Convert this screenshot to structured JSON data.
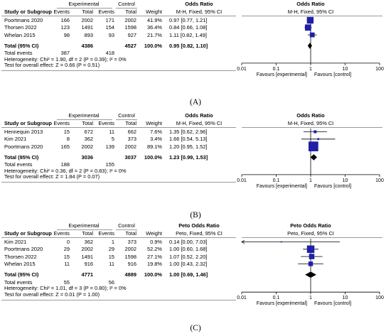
{
  "chart_data": [
    {
      "type": "forest",
      "header": {
        "exp_group": "Experimental",
        "ctl_group": "Control",
        "study": "Study or Subgroup",
        "events": "Events",
        "total": "Total",
        "weight": "Weight",
        "or_title": "Odds Ratio",
        "or_method": "M-H, Fixed, 95% CI",
        "plot_title": "Odds Ratio",
        "plot_method": "M-H, Fixed, 95% CI"
      },
      "studies": [
        {
          "name": "Poortmans 2020",
          "exp_events": "166",
          "exp_total": "2002",
          "ctl_events": "171",
          "ctl_total": "2002",
          "weight": "41.9%",
          "ci_text": "0.97 [0.77, 1.21]",
          "or": 0.97,
          "lo": 0.77,
          "hi": 1.21,
          "w": 41.9
        },
        {
          "name": "Thorsen 2022",
          "exp_events": "123",
          "exp_total": "1491",
          "ctl_events": "154",
          "ctl_total": "1598",
          "weight": "36.4%",
          "ci_text": "0.84 [0.66, 1.08]",
          "or": 0.84,
          "lo": 0.66,
          "hi": 1.08,
          "w": 36.4
        },
        {
          "name": "Whelan 2015",
          "exp_events": "98",
          "exp_total": "893",
          "ctl_events": "93",
          "ctl_total": "927",
          "weight": "21.7%",
          "ci_text": "1.11 [0.82, 1.49]",
          "or": 1.11,
          "lo": 0.82,
          "hi": 1.49,
          "w": 21.7
        }
      ],
      "total": {
        "label": "Total (95% CI)",
        "exp_total": "4386",
        "ctl_total": "4527",
        "weight": "100.0%",
        "ci_text": "0.95 [0.82, 1.10]",
        "or": 0.95,
        "lo": 0.82,
        "hi": 1.1
      },
      "total_events": {
        "label": "Total events",
        "exp": "387",
        "ctl": "418"
      },
      "heterogeneity": "Heterogeneity: Chi² = 1.90, df = 2 (P = 0.39); I² = 0%",
      "overall": "Test for overall effect: Z = 0.66 (P = 0.51)",
      "axis": {
        "scale": "log",
        "min": 0.01,
        "max": 100,
        "ticks": [
          "0.01",
          "0.1",
          "1",
          "10",
          "100"
        ]
      },
      "favours_left": "Favours [experimental]",
      "favours_right": "Favours [control]",
      "caption": "(A)"
    },
    {
      "type": "forest",
      "header": {
        "exp_group": "Experimental",
        "ctl_group": "Control",
        "study": "Study or Subgroup",
        "events": "Events",
        "total": "Total",
        "weight": "Weight",
        "or_title": "Odds Ratio",
        "or_method": "M-H, Fixed, 95% CI",
        "plot_title": "Odds Ratio",
        "plot_method": "M-H, Fixed, 95% CI"
      },
      "studies": [
        {
          "name": "Hennequin 2013",
          "exp_events": "15",
          "exp_total": "672",
          "ctl_events": "11",
          "ctl_total": "662",
          "weight": "7.6%",
          "ci_text": "1.35 [0.62, 2.96]",
          "or": 1.35,
          "lo": 0.62,
          "hi": 2.96,
          "w": 7.6
        },
        {
          "name": "Kim 2021",
          "exp_events": "8",
          "exp_total": "362",
          "ctl_events": "5",
          "ctl_total": "373",
          "weight": "3.4%",
          "ci_text": "1.66 [0.54, 5.13]",
          "or": 1.66,
          "lo": 0.54,
          "hi": 5.13,
          "w": 3.4
        },
        {
          "name": "Poortmans 2020",
          "exp_events": "165",
          "exp_total": "2002",
          "ctl_events": "139",
          "ctl_total": "2002",
          "weight": "89.1%",
          "ci_text": "1.20 [0.95, 1.52]",
          "or": 1.2,
          "lo": 0.95,
          "hi": 1.52,
          "w": 89.1
        }
      ],
      "total": {
        "label": "Total (95% CI)",
        "exp_total": "3036",
        "ctl_total": "3037",
        "weight": "100.0%",
        "ci_text": "1.23 [0.99, 1.53]",
        "or": 1.23,
        "lo": 0.99,
        "hi": 1.53
      },
      "total_events": {
        "label": "Total events",
        "exp": "188",
        "ctl": "155"
      },
      "heterogeneity": "Heterogeneity: Chi² = 0.36, df = 2 (P = 0.83); I² = 0%",
      "overall": "Test for overall effect: Z = 1.84 (P = 0.07)",
      "axis": {
        "scale": "log",
        "min": 0.01,
        "max": 100,
        "ticks": [
          "0.01",
          "0.1",
          "1",
          "10",
          "100"
        ]
      },
      "favours_left": "Favours [experimental]",
      "favours_right": "Favours [control]",
      "caption": "(B)"
    },
    {
      "type": "forest",
      "header": {
        "exp_group": "Experimental",
        "ctl_group": "Control",
        "study": "Study or Subgroup",
        "events": "Events",
        "total": "Total",
        "weight": "Weight",
        "or_title": "Peto Odds Ratio",
        "or_method": "Peto, Fixed, 95% CI",
        "plot_title": "Peto Odds Ratio",
        "plot_method": "Peto, Fixed, 95% CI"
      },
      "studies": [
        {
          "name": "Kim 2021",
          "exp_events": "0",
          "exp_total": "362",
          "ctl_events": "1",
          "ctl_total": "373",
          "weight": "0.9%",
          "ci_text": "0.14 [0.00, 7.03]",
          "or": 0.14,
          "lo": 0.0,
          "hi": 7.03,
          "w": 0.9
        },
        {
          "name": "Poortmans 2020",
          "exp_events": "29",
          "exp_total": "2002",
          "ctl_events": "29",
          "ctl_total": "2002",
          "weight": "52.2%",
          "ci_text": "1.00 [0.60, 1.68]",
          "or": 1.0,
          "lo": 0.6,
          "hi": 1.68,
          "w": 52.2
        },
        {
          "name": "Thorsen 2022",
          "exp_events": "15",
          "exp_total": "1491",
          "ctl_events": "15",
          "ctl_total": "1598",
          "weight": "27.1%",
          "ci_text": "1.07 [0.52, 2.20]",
          "or": 1.07,
          "lo": 0.52,
          "hi": 2.2,
          "w": 27.1
        },
        {
          "name": "Whelan 2015",
          "exp_events": "11",
          "exp_total": "916",
          "ctl_events": "11",
          "ctl_total": "916",
          "weight": "19.8%",
          "ci_text": "1.00 [0.43, 2.32]",
          "or": 1.0,
          "lo": 0.43,
          "hi": 2.32,
          "w": 19.8
        }
      ],
      "total": {
        "label": "Total (95% CI)",
        "exp_total": "4771",
        "ctl_total": "4889",
        "weight": "100.0%",
        "ci_text": "1.00 [0.69, 1.46]",
        "or": 1.0,
        "lo": 0.69,
        "hi": 1.46
      },
      "total_events": {
        "label": "Total events",
        "exp": "55",
        "ctl": "56"
      },
      "heterogeneity": "Heterogeneity: Chi² = 1.01, df = 3 (P = 0.80); I² = 0%",
      "overall": "Test for overall effect: Z = 0.01 (P = 1.00)",
      "axis": {
        "scale": "log",
        "min": 0.01,
        "max": 100,
        "ticks": [
          "0.01",
          "0.1",
          "1",
          "10",
          "100"
        ]
      },
      "favours_left": "Favours [experimental]",
      "favours_right": "Favours [control]",
      "caption": "(C)"
    }
  ],
  "colors": {
    "marker": "#1f1fa8",
    "ci_line": "#000000",
    "rule": "#9a9a9a"
  }
}
